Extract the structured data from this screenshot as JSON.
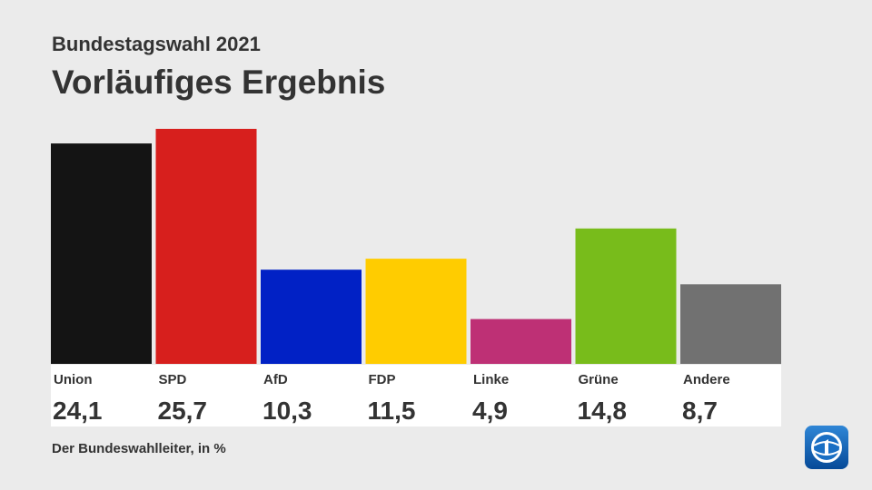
{
  "header": {
    "subtitle": "Bundestagswahl 2021",
    "title": "Vorläufiges Ergebnis"
  },
  "chart_data": {
    "type": "bar",
    "categories": [
      "Union",
      "SPD",
      "AfD",
      "FDP",
      "Linke",
      "Grüne",
      "Andere"
    ],
    "values": [
      24.1,
      25.7,
      10.3,
      11.5,
      4.9,
      14.8,
      8.7
    ],
    "value_labels": [
      "24,1",
      "25,7",
      "10,3",
      "11,5",
      "4,9",
      "14,8",
      "8,7"
    ],
    "colors": [
      "#141414",
      "#d71f1d",
      "#0121c5",
      "#ffcc00",
      "#be3075",
      "#78bc1b",
      "#717171"
    ],
    "title": "Vorläufiges Ergebnis",
    "xlabel": "",
    "ylabel": "",
    "ylim": [
      0,
      25.7
    ],
    "grid": false,
    "legend": "none"
  },
  "footer": {
    "source": "Der Bundeswahlleiter, in %"
  },
  "logo": {
    "icon": "ard-tagesschau-logo-icon",
    "color": "#0a5fb4"
  }
}
